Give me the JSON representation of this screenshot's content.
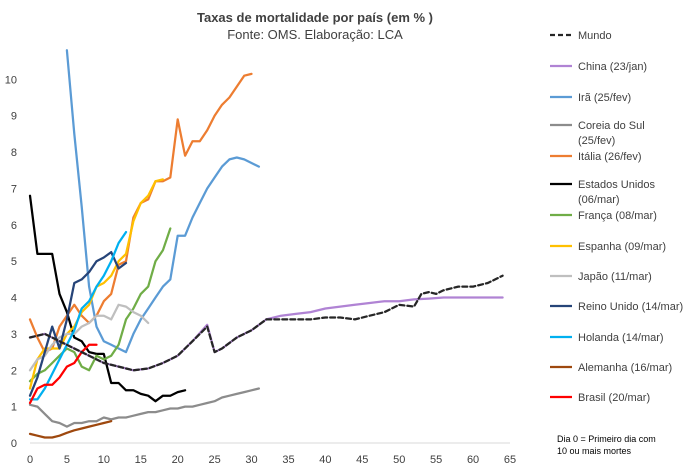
{
  "chart_data": {
    "type": "line",
    "title": "Taxas de mortalidade por país (em % )",
    "subtitle": "Fonte: OMS. Elaboração: LCA",
    "xlabel": "",
    "ylabel": "",
    "xlim": [
      0,
      65
    ],
    "ylim": [
      0,
      11
    ],
    "x_ticks": [
      0,
      5,
      10,
      15,
      20,
      25,
      30,
      35,
      40,
      45,
      50,
      55,
      60,
      65
    ],
    "y_ticks": [
      0,
      1,
      2,
      3,
      4,
      5,
      6,
      7,
      8,
      9,
      10
    ],
    "grid": false,
    "legend": "right",
    "note": [
      "Dia 0 = Primeiro dia com",
      "10 ou mais mortes"
    ],
    "series": [
      {
        "name": "Mundo",
        "legend_lines": [
          "Mundo"
        ],
        "color": "#262626",
        "dashed": true,
        "x": [
          0,
          2,
          4,
          6,
          8,
          10,
          12,
          14,
          16,
          18,
          20,
          22,
          24,
          25,
          26,
          28,
          30,
          32,
          34,
          36,
          38,
          40,
          42,
          44,
          46,
          48,
          50,
          52,
          53,
          54,
          55,
          56,
          58,
          60,
          62,
          63,
          64
        ],
        "y": [
          2.9,
          3.0,
          2.8,
          2.6,
          2.4,
          2.2,
          2.1,
          2.0,
          2.05,
          2.2,
          2.4,
          2.8,
          3.2,
          2.5,
          2.6,
          2.9,
          3.1,
          3.4,
          3.4,
          3.4,
          3.4,
          3.45,
          3.45,
          3.4,
          3.5,
          3.6,
          3.8,
          3.75,
          4.1,
          4.15,
          4.1,
          4.2,
          4.3,
          4.3,
          4.4,
          4.5,
          4.6
        ]
      },
      {
        "name": "China (23/jan)",
        "legend_lines": [
          "China (23/jan)"
        ],
        "color": "#b083d4",
        "dashed": false,
        "x": [
          0,
          2,
          4,
          6,
          8,
          10,
          12,
          14,
          16,
          18,
          20,
          22,
          24,
          25,
          26,
          28,
          30,
          32,
          34,
          36,
          38,
          40,
          42,
          44,
          46,
          48,
          50,
          52,
          54,
          56,
          58,
          60,
          62,
          64
        ],
        "y": [
          2.9,
          3.0,
          2.8,
          2.6,
          2.4,
          2.2,
          2.1,
          2.0,
          2.05,
          2.2,
          2.4,
          2.8,
          3.25,
          2.5,
          2.6,
          2.9,
          3.1,
          3.4,
          3.5,
          3.55,
          3.6,
          3.7,
          3.75,
          3.8,
          3.85,
          3.9,
          3.9,
          3.95,
          3.97,
          4.0,
          4.0,
          4.0,
          4.0,
          4.0
        ]
      },
      {
        "name": "Irã (25/fev)",
        "legend_lines": [
          "Irã (25/fev)"
        ],
        "color": "#5b9bd5",
        "dashed": false,
        "x": [
          5,
          6,
          7,
          8,
          9,
          10,
          11,
          12,
          13,
          14,
          15,
          16,
          17,
          18,
          19,
          20,
          21,
          22,
          23,
          24,
          25,
          26,
          27,
          28,
          29,
          30,
          31
        ],
        "y": [
          10.8,
          8.5,
          6.5,
          4.3,
          3.2,
          2.8,
          2.7,
          2.6,
          2.5,
          3.0,
          3.4,
          3.7,
          4.0,
          4.3,
          4.5,
          5.7,
          5.7,
          6.2,
          6.6,
          7.0,
          7.3,
          7.6,
          7.8,
          7.85,
          7.8,
          7.7,
          7.6
        ]
      },
      {
        "name": "Coreia do Sul (25/fev)",
        "legend_lines": [
          "Coreia do Sul",
          "(25/fev)"
        ],
        "color": "#8c8c8c",
        "dashed": false,
        "x": [
          0,
          1,
          2,
          3,
          4,
          5,
          6,
          7,
          8,
          9,
          10,
          11,
          12,
          13,
          14,
          15,
          16,
          17,
          18,
          19,
          20,
          21,
          22,
          23,
          24,
          25,
          26,
          27,
          28,
          29,
          30,
          31
        ],
        "y": [
          1.05,
          1.0,
          0.8,
          0.6,
          0.55,
          0.45,
          0.55,
          0.55,
          0.6,
          0.6,
          0.7,
          0.65,
          0.7,
          0.7,
          0.75,
          0.8,
          0.85,
          0.85,
          0.9,
          0.95,
          0.95,
          1.0,
          1.0,
          1.05,
          1.1,
          1.15,
          1.25,
          1.3,
          1.35,
          1.4,
          1.45,
          1.5
        ]
      },
      {
        "name": "Itália (26/fev)",
        "legend_lines": [
          "Itália (26/fev)"
        ],
        "color": "#ed7d31",
        "dashed": false,
        "x": [
          0,
          1,
          2,
          3,
          4,
          5,
          6,
          7,
          8,
          9,
          10,
          11,
          12,
          13,
          14,
          15,
          16,
          17,
          18,
          19,
          20,
          21,
          22,
          23,
          24,
          25,
          26,
          27,
          28,
          29,
          30
        ],
        "y": [
          3.4,
          2.9,
          2.5,
          2.6,
          3.2,
          3.5,
          3.8,
          3.5,
          3.3,
          3.5,
          3.9,
          4.1,
          4.9,
          5.0,
          6.2,
          6.6,
          6.7,
          7.2,
          7.2,
          7.3,
          8.9,
          7.9,
          8.3,
          8.3,
          8.6,
          9.0,
          9.3,
          9.5,
          9.8,
          10.1,
          10.15
        ]
      },
      {
        "name": "Estados Unidos (06/mar)",
        "legend_lines": [
          "Estados Unidos",
          "(06/mar)"
        ],
        "color": "#000000",
        "dashed": false,
        "x": [
          0,
          1,
          2,
          3,
          4,
          5,
          6,
          7,
          8,
          9,
          10,
          11,
          12,
          13,
          14,
          15,
          16,
          17,
          18,
          19,
          20,
          21
        ],
        "y": [
          6.8,
          5.2,
          5.2,
          5.2,
          4.1,
          3.6,
          2.9,
          2.8,
          2.5,
          2.45,
          2.45,
          1.65,
          1.65,
          1.45,
          1.45,
          1.35,
          1.3,
          1.15,
          1.3,
          1.3,
          1.4,
          1.45
        ]
      },
      {
        "name": "França (08/mar)",
        "legend_lines": [
          "França (08/mar)"
        ],
        "color": "#70ad47",
        "dashed": false,
        "x": [
          0,
          1,
          2,
          3,
          4,
          5,
          6,
          7,
          8,
          9,
          10,
          11,
          12,
          13,
          14,
          15,
          16,
          17,
          18,
          19
        ],
        "y": [
          1.7,
          1.9,
          2.0,
          2.2,
          2.4,
          2.6,
          2.5,
          2.1,
          2.0,
          2.4,
          2.3,
          2.4,
          2.7,
          3.4,
          3.7,
          4.1,
          4.3,
          5.0,
          5.3,
          5.9
        ]
      },
      {
        "name": "Espanha (09/mar)",
        "legend_lines": [
          "Espanha (09/mar)"
        ],
        "color": "#ffc000",
        "dashed": false,
        "x": [
          0,
          1,
          2,
          3,
          4,
          5,
          6,
          7,
          8,
          9,
          10,
          11,
          12,
          13,
          14,
          15,
          16,
          17,
          18
        ],
        "y": [
          1.5,
          2.3,
          2.6,
          2.6,
          2.6,
          3.0,
          3.2,
          3.6,
          3.8,
          4.3,
          4.4,
          4.6,
          5.0,
          5.2,
          6.1,
          6.6,
          6.8,
          7.2,
          7.25
        ]
      },
      {
        "name": "Japão (11/mar)",
        "legend_lines": [
          "Japão (11/mar)"
        ],
        "color": "#bfbfbf",
        "dashed": false,
        "x": [
          0,
          1,
          2,
          3,
          4,
          5,
          6,
          7,
          8,
          9,
          10,
          11,
          12,
          13,
          14,
          15,
          16
        ],
        "y": [
          2.0,
          2.3,
          2.4,
          2.7,
          2.9,
          3.0,
          3.0,
          3.2,
          3.3,
          3.5,
          3.5,
          3.4,
          3.8,
          3.75,
          3.6,
          3.5,
          3.3
        ]
      },
      {
        "name": "Reino Unido (14/mar)",
        "legend_lines": [
          "Reino Unido (14/mar)"
        ],
        "color": "#264478",
        "dashed": false,
        "x": [
          0,
          1,
          2,
          3,
          4,
          5,
          6,
          7,
          8,
          9,
          10,
          11,
          12,
          13
        ],
        "y": [
          1.3,
          1.8,
          2.5,
          3.2,
          2.6,
          3.4,
          4.4,
          4.5,
          4.7,
          5.0,
          5.1,
          5.25,
          4.8,
          4.95
        ]
      },
      {
        "name": "Holanda (14/mar)",
        "legend_lines": [
          "Holanda (14/mar)"
        ],
        "color": "#00b0f0",
        "dashed": false,
        "x": [
          0,
          1,
          2,
          3,
          4,
          5,
          6,
          7,
          8,
          9,
          10,
          11,
          12,
          13
        ],
        "y": [
          1.2,
          1.2,
          1.5,
          1.9,
          2.3,
          2.7,
          3.1,
          3.7,
          3.9,
          4.3,
          4.6,
          5.0,
          5.5,
          5.8
        ]
      },
      {
        "name": "Alemanha (16/mar)",
        "legend_lines": [
          "Alemanha (16/mar)"
        ],
        "color": "#9e480e",
        "dashed": false,
        "x": [
          0,
          1,
          2,
          3,
          4,
          5,
          6,
          7,
          8,
          9,
          10,
          11
        ],
        "y": [
          0.25,
          0.2,
          0.15,
          0.15,
          0.2,
          0.28,
          0.35,
          0.4,
          0.45,
          0.5,
          0.55,
          0.6
        ]
      },
      {
        "name": "Brasil (20/mar)",
        "legend_lines": [
          "Brasil (20/mar)"
        ],
        "color": "#ff0000",
        "dashed": false,
        "x": [
          0,
          1,
          2,
          3,
          4,
          5,
          6,
          7,
          8,
          9
        ],
        "y": [
          1.1,
          1.5,
          1.6,
          1.6,
          1.8,
          2.1,
          2.2,
          2.5,
          2.7,
          2.7
        ]
      }
    ]
  }
}
